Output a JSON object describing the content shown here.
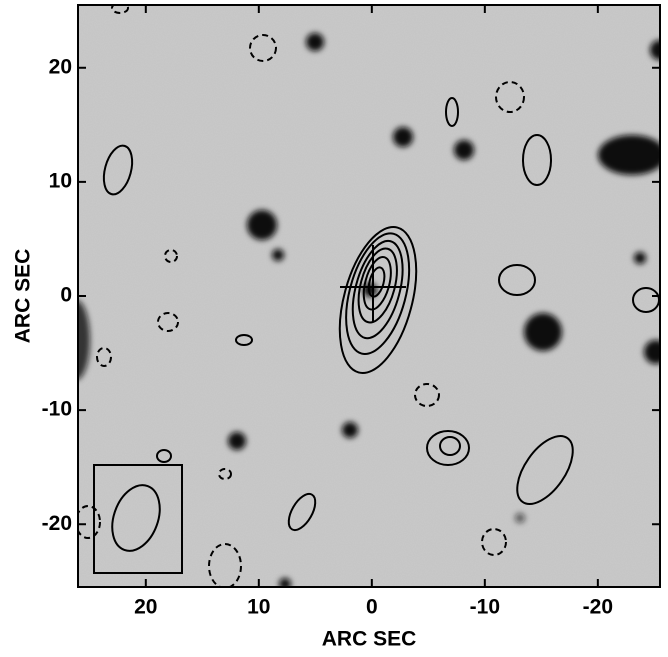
{
  "chart_data": {
    "type": "image",
    "xlabel": "ARC SEC",
    "ylabel": "ARC SEC",
    "xlim": [
      26,
      -25.5
    ],
    "ylim": [
      -25.5,
      25.5
    ],
    "xticks": [
      20,
      10,
      0,
      -10,
      -20
    ],
    "yticks": [
      -20,
      -10,
      0,
      10,
      20
    ]
  }
}
